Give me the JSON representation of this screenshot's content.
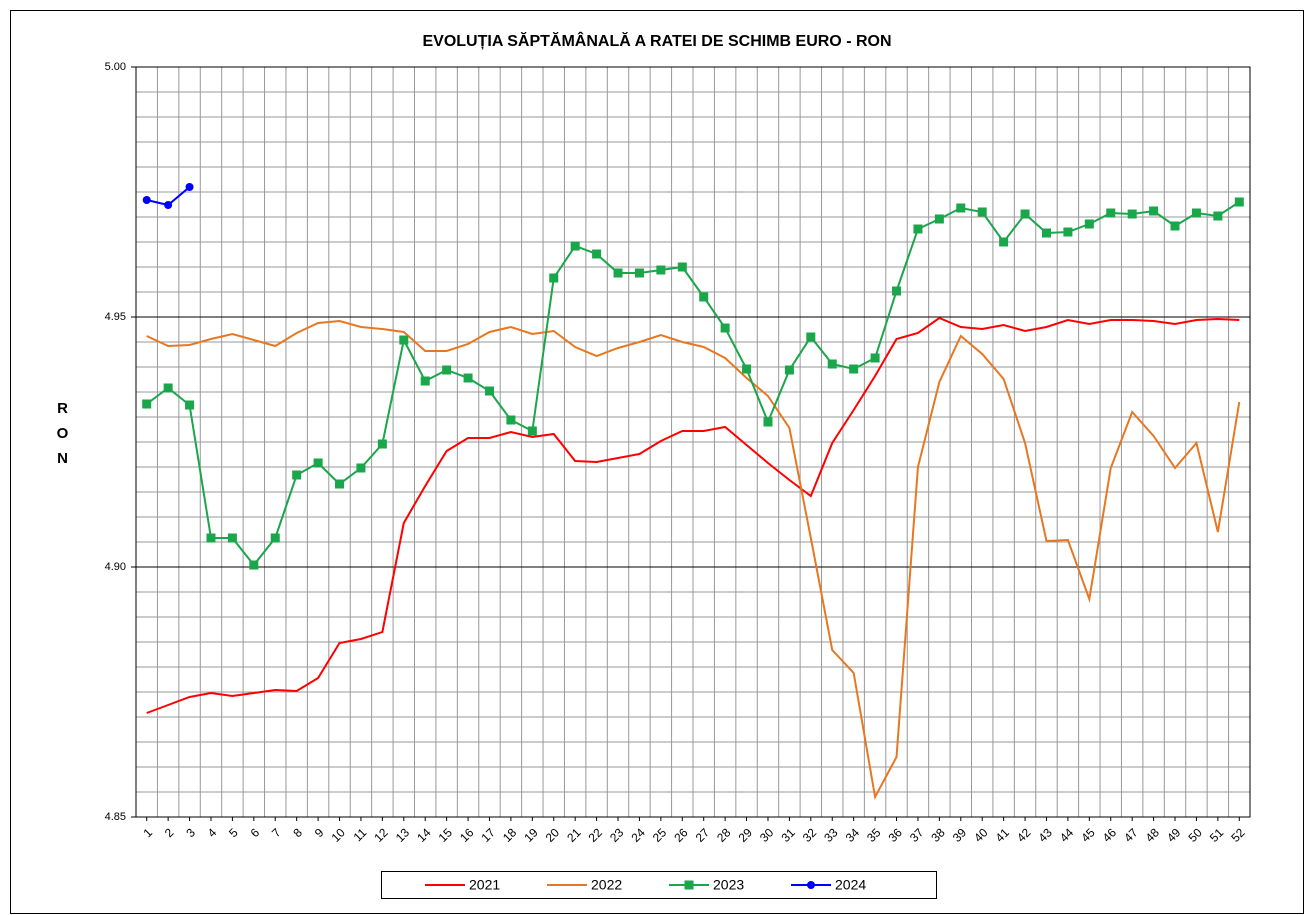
{
  "chart_data": {
    "type": "line",
    "title": "EVOLUȚIA SĂPTĂMÂNALĂ  A RATEI DE SCHIMB EURO - RON",
    "y_label": "RON",
    "categories": [
      "1",
      "2",
      "3",
      "4",
      "5",
      "6",
      "7",
      "8",
      "9",
      "10",
      "11",
      "12",
      "13",
      "14",
      "15",
      "16",
      "17",
      "18",
      "19",
      "20",
      "21",
      "22",
      "23",
      "24",
      "25",
      "26",
      "27",
      "28",
      "29",
      "30",
      "31",
      "32",
      "33",
      "34",
      "35",
      "36",
      "37",
      "38",
      "39",
      "40",
      "41",
      "42",
      "43",
      "44",
      "45",
      "46",
      "47",
      "48",
      "49",
      "50",
      "51",
      "52"
    ],
    "ylim": [
      4.85,
      5.0
    ],
    "yticks": [
      {
        "value": 4.85,
        "label": "4.85"
      },
      {
        "value": 4.9,
        "label": "4.90"
      },
      {
        "value": 4.95,
        "label": "4.95"
      },
      {
        "value": 5.0,
        "label": "5.00"
      }
    ],
    "minor_yticks": [
      4.855,
      4.86,
      4.865,
      4.87,
      4.875,
      4.88,
      4.885,
      4.89,
      4.895,
      4.905,
      4.91,
      4.915,
      4.92,
      4.925,
      4.93,
      4.935,
      4.94,
      4.945,
      4.955,
      4.96,
      4.965,
      4.97,
      4.975,
      4.98,
      4.985,
      4.99,
      4.995
    ],
    "grid": true,
    "legend": "bottom",
    "series": [
      {
        "name": "2021",
        "color": "#ff0000",
        "marker": "none",
        "values": [
          4.8708,
          4.8724,
          4.874,
          4.8748,
          4.8742,
          4.8748,
          4.8754,
          4.8752,
          4.8778,
          4.8848,
          4.8856,
          4.887,
          4.9088,
          4.9162,
          4.9232,
          4.9258,
          4.9258,
          4.927,
          4.926,
          4.9266,
          4.9212,
          4.921,
          4.9218,
          4.9226,
          4.9252,
          4.9272,
          4.9272,
          4.928,
          4.9244,
          4.9208,
          4.9174,
          4.9142,
          4.9248,
          4.9314,
          4.9382,
          4.9456,
          4.9468,
          4.9498,
          4.948,
          4.9476,
          4.9484,
          4.9472,
          4.948,
          4.9494,
          4.9486,
          4.9494,
          4.9494,
          4.9492,
          4.9486,
          4.9494,
          4.9496,
          4.9494
        ]
      },
      {
        "name": "2022",
        "color": "#e87722",
        "marker": "none",
        "values": [
          4.9462,
          4.9442,
          4.9444,
          4.9456,
          4.9466,
          4.9454,
          4.9442,
          4.9468,
          4.9488,
          4.9492,
          4.948,
          4.9476,
          4.947,
          4.9432,
          4.9432,
          4.9446,
          4.947,
          4.948,
          4.9466,
          4.9472,
          4.944,
          4.9422,
          4.9438,
          4.945,
          4.9464,
          4.945,
          4.944,
          4.9418,
          4.9378,
          4.9342,
          4.9278,
          4.9058,
          4.8834,
          4.8788,
          4.854,
          4.862,
          4.92,
          4.937,
          4.9462,
          4.9426,
          4.9376,
          4.9248,
          4.9052,
          4.9054,
          4.8936,
          4.9198,
          4.931,
          4.9262,
          4.9198,
          4.9248,
          4.907,
          4.933
        ]
      },
      {
        "name": "2023",
        "color": "#1aa64a",
        "marker": "square",
        "values": [
          4.9326,
          4.9358,
          4.9324,
          4.9058,
          4.9058,
          4.9004,
          4.9058,
          4.9184,
          4.9208,
          4.9166,
          4.9198,
          4.9246,
          4.9454,
          4.9372,
          4.9394,
          4.9378,
          4.9352,
          4.9294,
          4.9272,
          4.9578,
          4.9642,
          4.9626,
          4.9588,
          4.9588,
          4.9594,
          4.96,
          4.954,
          4.9478,
          4.9396,
          4.929,
          4.9394,
          4.946,
          4.9406,
          4.9396,
          4.9418,
          4.9552,
          4.9676,
          4.9696,
          4.9718,
          4.971,
          4.965,
          4.9706,
          4.9668,
          4.967,
          4.9686,
          4.9708,
          4.9706,
          4.9712,
          4.9682,
          4.9708,
          4.9702,
          4.973
        ]
      },
      {
        "name": "2024",
        "color": "#0000ff",
        "marker": "circle",
        "values": [
          4.9734,
          4.9724,
          4.976,
          null,
          null,
          null,
          null,
          null,
          null,
          null,
          null,
          null,
          null,
          null,
          null,
          null,
          null,
          null,
          null,
          null,
          null,
          null,
          null,
          null,
          null,
          null,
          null,
          null,
          null,
          null,
          null,
          null,
          null,
          null,
          null,
          null,
          null,
          null,
          null,
          null,
          null,
          null,
          null,
          null,
          null,
          null,
          null,
          null,
          null,
          null,
          null,
          null
        ]
      }
    ]
  }
}
